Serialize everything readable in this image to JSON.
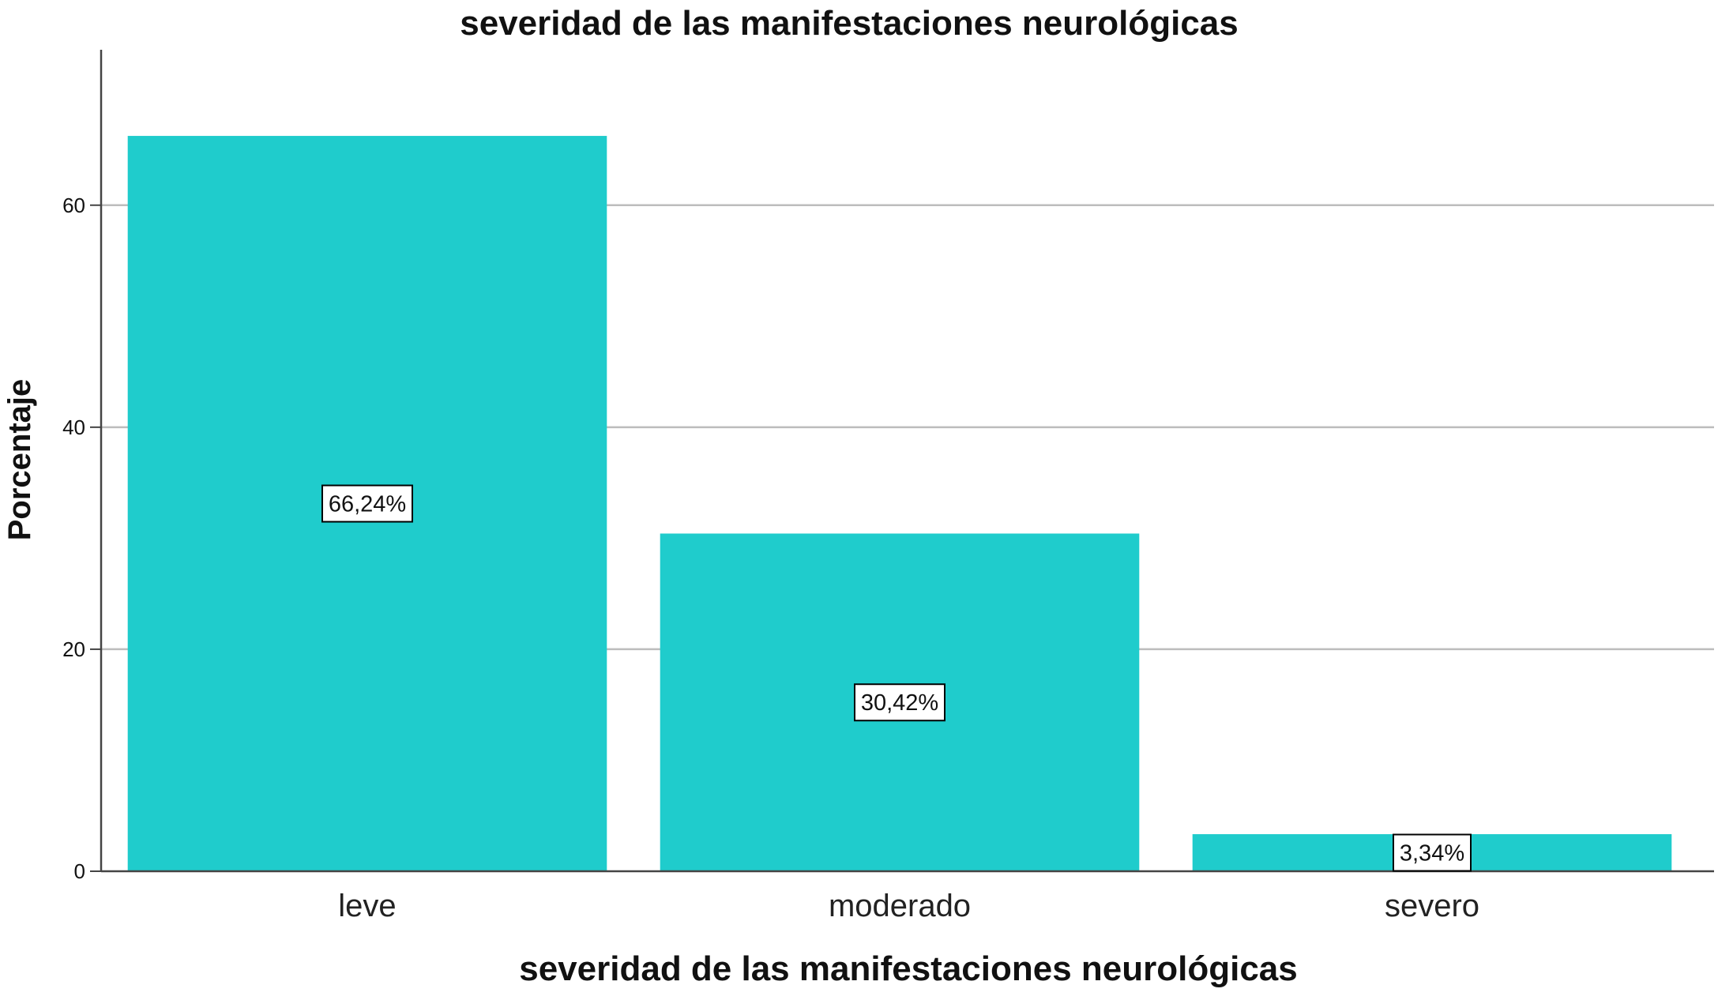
{
  "chart_data": {
    "type": "bar",
    "title": "severidad de las manifestaciones neurológicas",
    "xlabel": "severidad de las manifestaciones neurológicas",
    "ylabel": "Porcentaje",
    "categories": [
      "leve",
      "moderado",
      "severo"
    ],
    "values": [
      66.24,
      30.42,
      3.34
    ],
    "data_labels": [
      "66,24%",
      "30,42%",
      "3,34%"
    ],
    "ylim": [
      0,
      74
    ],
    "yticks": [
      0,
      20,
      40,
      60
    ],
    "ytick_labels": [
      "0",
      "20",
      "40",
      "60"
    ],
    "grid": true,
    "legend": "none",
    "colors": {
      "bar": "#1fcccc",
      "grid": "#bdbdbd",
      "axis": "#444444"
    }
  }
}
